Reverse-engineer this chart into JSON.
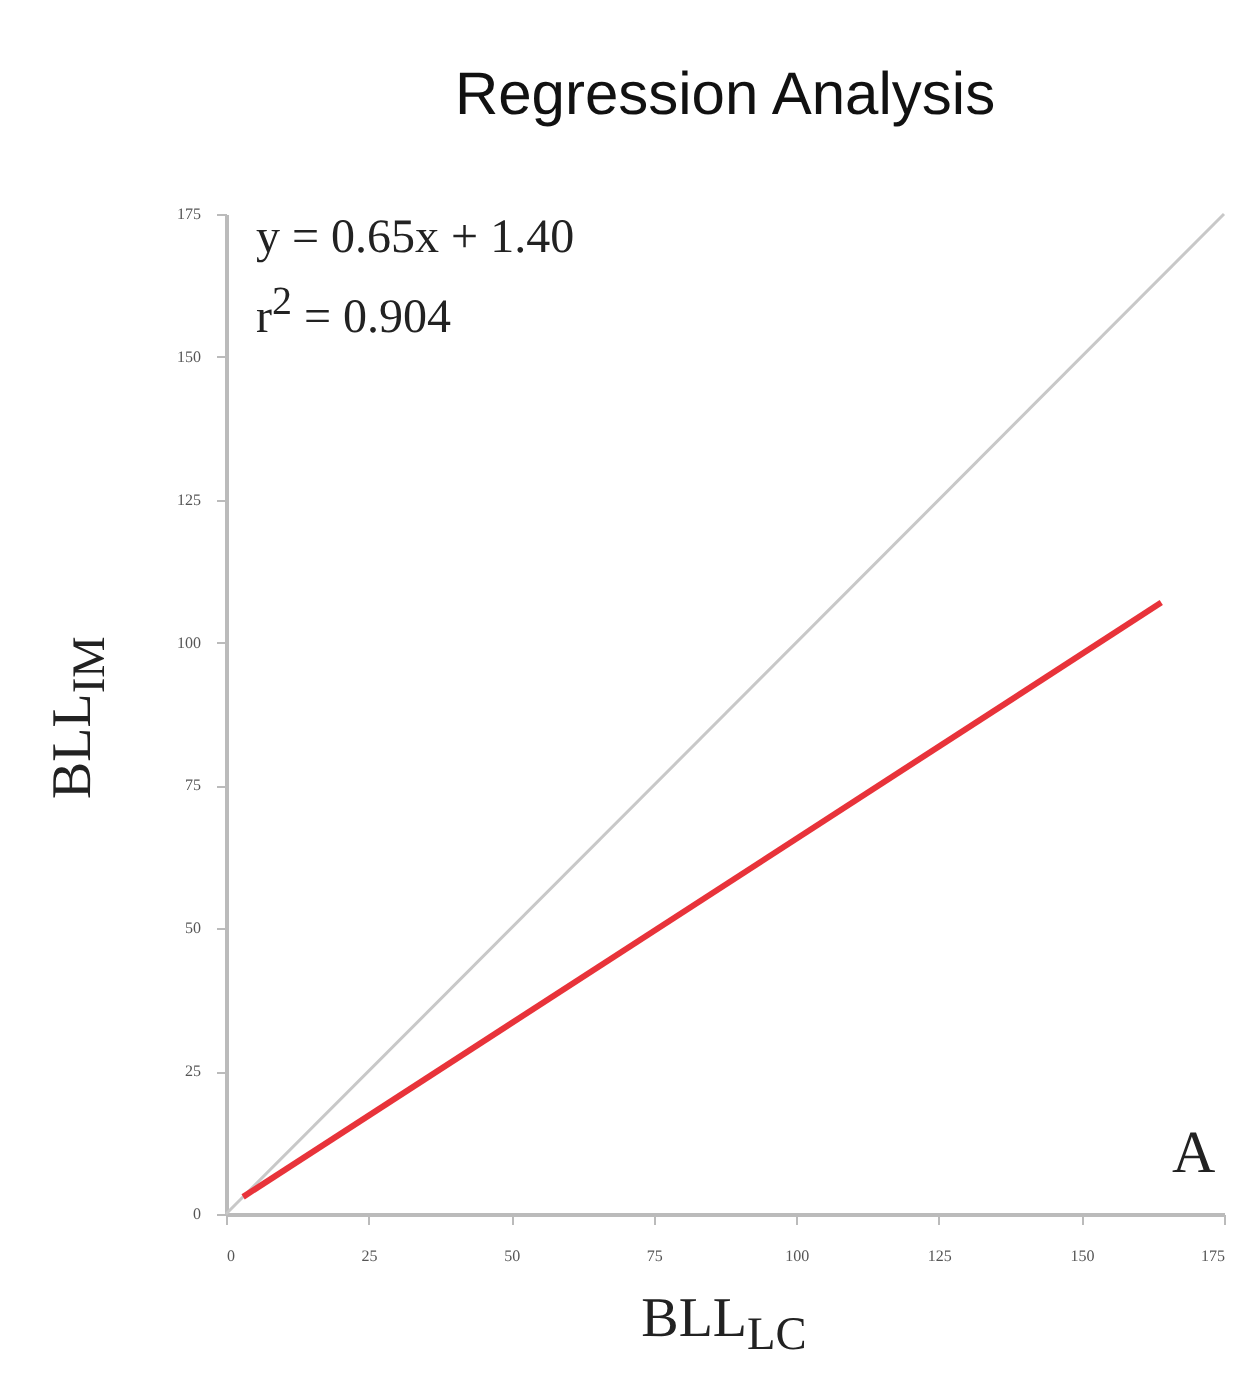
{
  "chart_data": {
    "type": "line",
    "title": "Regression Analysis",
    "xlabel": "BLL$_{LC}$",
    "ylabel": "BLL$_{IM}$",
    "series": [
      {
        "color": "#c8c8c8",
        "x": [
          0,
          175
        ],
        "values": [
          0,
          175
        ]
      },
      {
        "color": "#e8333a",
        "x": [
          3,
          164
        ],
        "values": [
          3,
          107
        ]
      }
    ],
    "xlim": [
      0,
      175
    ],
    "ylim": [
      0,
      175
    ],
    "xticks": [
      0,
      25,
      50,
      75,
      100,
      125,
      150,
      175
    ],
    "yticks": [
      0,
      25,
      50,
      75,
      100,
      125,
      150,
      175
    ],
    "grid": false,
    "marker": "none",
    "line_style": "solid",
    "annotations": [
      "y = 0.65x + 1.40",
      "r$^{2}$ = 0.904",
      "A"
    ]
  }
}
